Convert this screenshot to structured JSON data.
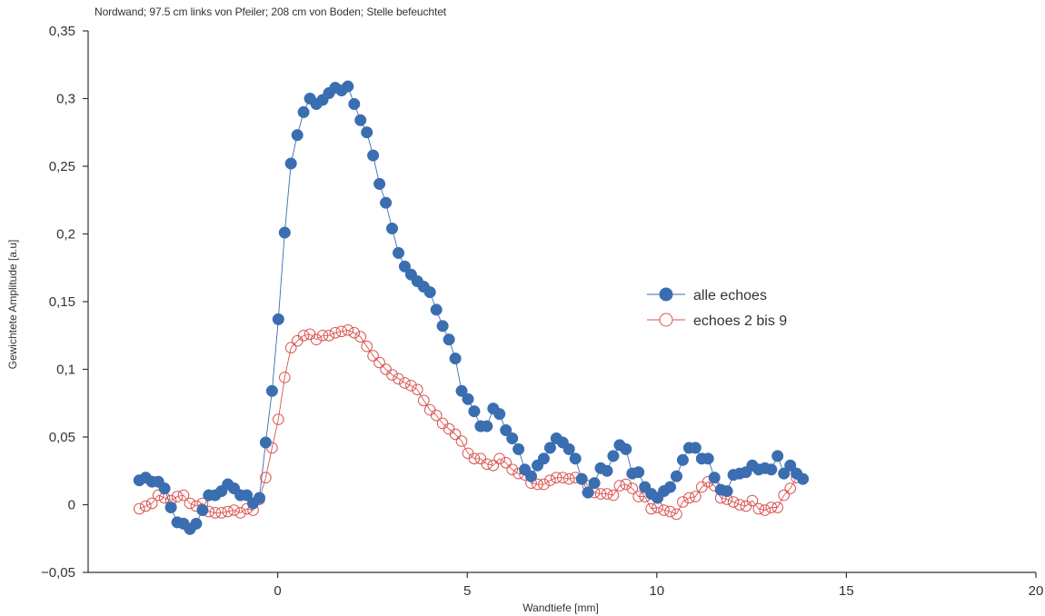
{
  "chart_data": {
    "type": "line",
    "note": "Nordwand; 97.5 cm links von Pfeiler; 208 cm von Boden; Stelle befeuchtet",
    "xlabel": "Wandtiefe [mm]",
    "ylabel": "Gewichtete Amplitude [a.u]",
    "xlim": [
      -5,
      20
    ],
    "ylim": [
      -0.05,
      0.35
    ],
    "x_ticks": [
      0,
      5,
      10,
      15,
      20
    ],
    "x_tick_labels": [
      "0",
      "5",
      "10",
      "15",
      "20"
    ],
    "y_ticks": [
      -0.05,
      0,
      0.05,
      0.1,
      0.15,
      0.2,
      0.25,
      0.3,
      0.35
    ],
    "y_tick_labels": [
      "−0,05",
      "0",
      "0,05",
      "0,1",
      "0,15",
      "0,2",
      "0,25",
      "0,3",
      "0,35"
    ],
    "legend_position": "center-right",
    "grid": false,
    "x_start": -3.65,
    "x_step": 0.1667,
    "series": [
      {
        "name": "alle echoes",
        "color": "#3a6eb0",
        "marker": "filled-circle",
        "values": [
          0.018,
          0.02,
          0.017,
          0.017,
          0.012,
          -0.002,
          -0.013,
          -0.014,
          -0.018,
          -0.014,
          -0.004,
          0.007,
          0.007,
          0.01,
          0.015,
          0.012,
          0.007,
          0.007,
          0.001,
          0.005,
          0.046,
          0.084,
          0.137,
          0.201,
          0.252,
          0.273,
          0.29,
          0.3,
          0.296,
          0.299,
          0.304,
          0.308,
          0.306,
          0.309,
          0.296,
          0.284,
          0.275,
          0.258,
          0.237,
          0.223,
          0.204,
          0.186,
          0.176,
          0.17,
          0.165,
          0.161,
          0.157,
          0.144,
          0.132,
          0.122,
          0.108,
          0.084,
          0.078,
          0.069,
          0.058,
          0.058,
          0.071,
          0.067,
          0.055,
          0.049,
          0.041,
          0.026,
          0.021,
          0.029,
          0.034,
          0.042,
          0.049,
          0.046,
          0.041,
          0.034,
          0.019,
          0.009,
          0.016,
          0.027,
          0.025,
          0.036,
          0.044,
          0.041,
          0.023,
          0.024,
          0.013,
          0.008,
          0.005,
          0.01,
          0.013,
          0.021,
          0.033,
          0.042,
          0.042,
          0.034,
          0.034,
          0.02,
          0.011,
          0.01,
          0.022,
          0.023,
          0.024,
          0.029,
          0.026,
          0.027,
          0.026,
          0.036,
          0.023,
          0.029,
          0.023,
          0.019
        ]
      },
      {
        "name": "echoes 2 bis 9",
        "color": "#d9534f",
        "marker": "open-circle",
        "values": [
          -0.003,
          -0.001,
          0.001,
          0.007,
          0.005,
          0.003,
          0.006,
          0.007,
          0.001,
          -0.001,
          0.001,
          -0.005,
          -0.006,
          -0.006,
          -0.005,
          -0.004,
          -0.006,
          -0.003,
          -0.004,
          0.004,
          0.02,
          0.042,
          0.063,
          0.094,
          0.116,
          0.121,
          0.125,
          0.126,
          0.122,
          0.125,
          0.125,
          0.127,
          0.128,
          0.129,
          0.127,
          0.124,
          0.117,
          0.11,
          0.105,
          0.1,
          0.096,
          0.093,
          0.09,
          0.088,
          0.085,
          0.077,
          0.07,
          0.066,
          0.06,
          0.056,
          0.052,
          0.047,
          0.038,
          0.034,
          0.034,
          0.03,
          0.029,
          0.034,
          0.031,
          0.026,
          0.023,
          0.022,
          0.016,
          0.015,
          0.015,
          0.018,
          0.02,
          0.02,
          0.019,
          0.02,
          0.019,
          0.014,
          0.009,
          0.008,
          0.008,
          0.007,
          0.014,
          0.015,
          0.012,
          0.006,
          0.006,
          -0.003,
          -0.002,
          -0.004,
          -0.005,
          -0.007,
          0.002,
          0.005,
          0.006,
          0.013,
          0.017,
          0.014,
          0.005,
          0.004,
          0.002,
          0.0,
          -0.001,
          0.003,
          -0.003,
          -0.004,
          -0.002,
          -0.002,
          0.007,
          0.012,
          0.02
        ]
      }
    ]
  }
}
